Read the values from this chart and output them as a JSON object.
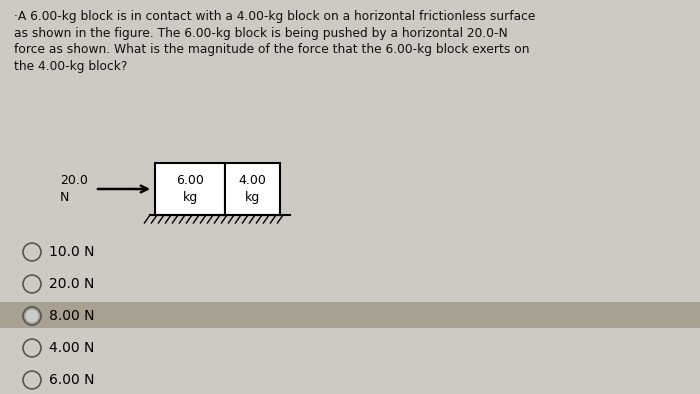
{
  "question_text_lines": [
    "·A 6.00-kg block is in contact with a 4.00-kg block on a horizontal frictionless surface",
    "as shown in the figure. The 6.00-kg block is being pushed by a horizontal 20.0-N",
    "force as shown. What is the magnitude of the force that the 6.00-kg block exerts on",
    "the 4.00-kg block?"
  ],
  "force_label_line1": "20.0",
  "force_label_line2": "N",
  "block1_label": "6.00\nkg",
  "block2_label": "4.00\nkg",
  "answer_choices": [
    "10.0 N",
    "20.0 N",
    "8.00 N",
    "4.00 N",
    "6.00 N"
  ],
  "selected_answer_index": 2,
  "bg_color": "#cdc9c3",
  "highlight_color": "#a8a090",
  "text_color": "#111111",
  "fig_width": 7.0,
  "fig_height": 3.94,
  "dpi": 100
}
